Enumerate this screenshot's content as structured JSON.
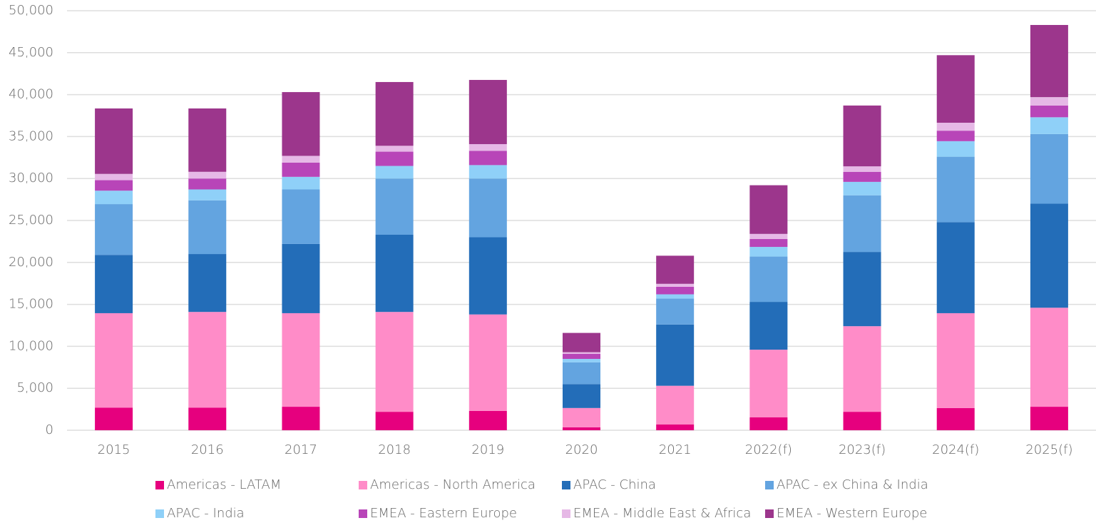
{
  "chart_data": {
    "type": "stacked_bar",
    "categories": [
      "2015",
      "2016",
      "2017",
      "2018",
      "2019",
      "2020",
      "2021",
      "2022(f)",
      "2023(f)",
      "2024(f)",
      "2025(f)"
    ],
    "series": [
      {
        "name": "Americas - LATAM",
        "color": "#e6007e",
        "values": [
          2700,
          2700,
          2800,
          2200,
          2300,
          350,
          700,
          1550,
          2200,
          2650,
          2800
        ]
      },
      {
        "name": "Americas - North America",
        "color": "#ff8cc8",
        "values": [
          11250,
          11400,
          11150,
          11900,
          11500,
          2300,
          4600,
          8050,
          10200,
          11300,
          11800
        ]
      },
      {
        "name": "APAC - China",
        "color": "#236db8",
        "values": [
          6950,
          6900,
          8250,
          9200,
          9200,
          2850,
          7300,
          5700,
          8850,
          10850,
          12400
        ]
      },
      {
        "name": "APAC - ex China & India",
        "color": "#63a4e0",
        "values": [
          6050,
          6400,
          6500,
          6700,
          7000,
          2600,
          3100,
          5400,
          6750,
          7800,
          8300
        ]
      },
      {
        "name": "APAC - India",
        "color": "#8fd0f8",
        "values": [
          1600,
          1300,
          1500,
          1500,
          1600,
          400,
          500,
          1150,
          1600,
          1850,
          2000
        ]
      },
      {
        "name": "EMEA - Eastern Europe",
        "color": "#b845b8",
        "values": [
          1250,
          1300,
          1700,
          1700,
          1700,
          600,
          900,
          950,
          1200,
          1250,
          1400
        ]
      },
      {
        "name": "EMEA - Middle East & Africa",
        "color": "#e6b8e6",
        "values": [
          750,
          800,
          800,
          700,
          800,
          200,
          350,
          600,
          650,
          950,
          1000
        ]
      },
      {
        "name": "EMEA - Western Europe",
        "color": "#9c368c",
        "values": [
          7800,
          7550,
          7600,
          7600,
          7650,
          2300,
          3350,
          5800,
          7250,
          8050,
          8600
        ]
      }
    ],
    "ylim": [
      0,
      50000
    ],
    "yticks": [
      0,
      {
        "value": 5000,
        "label": "5,000"
      },
      {
        "value": 10000,
        "label": "10,000"
      },
      {
        "value": 15000,
        "label": "15,000"
      },
      {
        "value": 20000,
        "label": "20,000"
      },
      {
        "value": 25000,
        "label": "25,000"
      },
      {
        "value": 30000,
        "label": "30,000"
      },
      {
        "value": 35000,
        "label": "35,000"
      },
      {
        "value": 40000,
        "label": "40,000"
      },
      {
        "value": 45000,
        "label": "45,000"
      },
      {
        "value": 50000,
        "label": "50,000"
      }
    ],
    "grid": true,
    "legend": "bottom"
  }
}
